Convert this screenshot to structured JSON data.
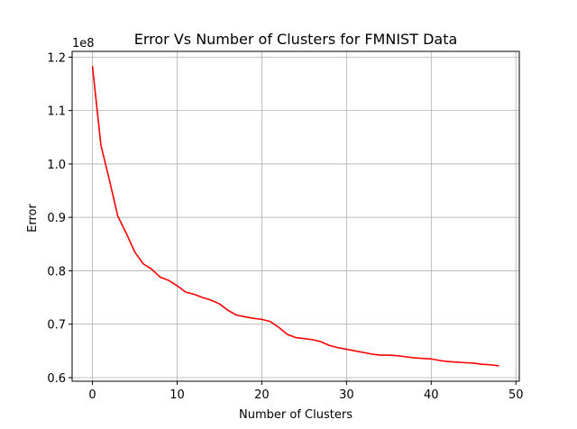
{
  "chart_data": {
    "type": "line",
    "title": "Error Vs Number of Clusters for FMNIST Data",
    "xlabel": "Number of Clusters",
    "ylabel": "Error",
    "offset_text": "1e8",
    "xlim": [
      -2.4,
      50.4
    ],
    "ylim": [
      0.5932,
      1.2108
    ],
    "y_scale": 100000000,
    "grid": true,
    "x_ticks": [
      0,
      10,
      20,
      30,
      40,
      50
    ],
    "x_tick_labels": [
      "0",
      "10",
      "20",
      "30",
      "40",
      "50"
    ],
    "y_ticks": [
      0.6,
      0.7,
      0.8,
      0.9,
      1.0,
      1.1,
      1.2
    ],
    "y_tick_labels": [
      "0.6",
      "0.7",
      "0.8",
      "0.9",
      "1.0",
      "1.1",
      "1.2"
    ],
    "series": [
      {
        "color": "#ff0000",
        "x": [
          0,
          1,
          2,
          3,
          4,
          5,
          6,
          7,
          8,
          9,
          10,
          11,
          12,
          13,
          14,
          15,
          16,
          17,
          18,
          19,
          20,
          21,
          22,
          23,
          24,
          25,
          26,
          27,
          28,
          29,
          30,
          31,
          32,
          33,
          34,
          35,
          36,
          37,
          38,
          39,
          40,
          41,
          42,
          43,
          44,
          45,
          46,
          47,
          48
        ],
        "y": [
          1.183,
          1.035,
          0.97,
          0.902,
          0.87,
          0.835,
          0.813,
          0.803,
          0.788,
          0.782,
          0.772,
          0.76,
          0.756,
          0.75,
          0.745,
          0.738,
          0.726,
          0.717,
          0.714,
          0.711,
          0.709,
          0.705,
          0.694,
          0.681,
          0.675,
          0.673,
          0.671,
          0.667,
          0.66,
          0.656,
          0.653,
          0.65,
          0.647,
          0.644,
          0.642,
          0.642,
          0.641,
          0.639,
          0.637,
          0.636,
          0.635,
          0.632,
          0.63,
          0.629,
          0.628,
          0.627,
          0.625,
          0.624,
          0.622
        ]
      }
    ]
  }
}
